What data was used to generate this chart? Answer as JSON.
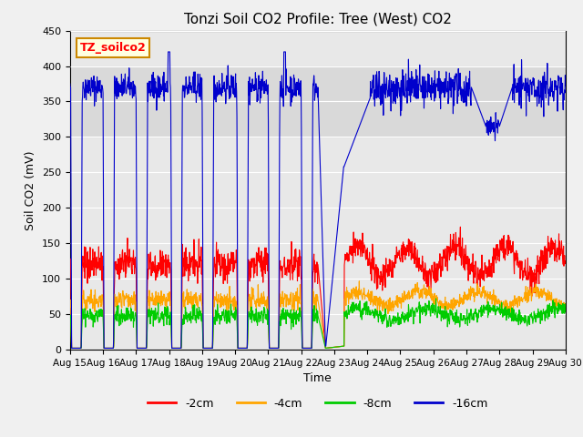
{
  "title": "Tonzi Soil CO2 Profile: Tree (West) CO2",
  "ylabel": "Soil CO2 (mV)",
  "xlabel": "Time",
  "legend_label": "TZ_soilco2",
  "ylim": [
    0,
    450
  ],
  "xlim": [
    0,
    15
  ],
  "line_colors": {
    "2cm": "#ff0000",
    "4cm": "#ffa500",
    "8cm": "#00cc00",
    "16cm": "#0000cc"
  },
  "legend_labels": [
    "-2cm",
    "-4cm",
    "-8cm",
    "-16cm"
  ],
  "x_tick_labels": [
    "Aug 15",
    "Aug 16",
    "Aug 17",
    "Aug 18",
    "Aug 19",
    "Aug 20",
    "Aug 21",
    "Aug 22",
    "Aug 23",
    "Aug 24",
    "Aug 25",
    "Aug 26",
    "Aug 27",
    "Aug 28",
    "Aug 29",
    "Aug 30"
  ],
  "yticks": [
    0,
    50,
    100,
    150,
    200,
    250,
    300,
    350,
    400,
    450
  ],
  "gray_band_ymin": 300,
  "gray_band_ymax": 400,
  "title_fontsize": 11,
  "axis_fontsize": 9,
  "tick_fontsize": 8,
  "legend_fontsize": 9
}
